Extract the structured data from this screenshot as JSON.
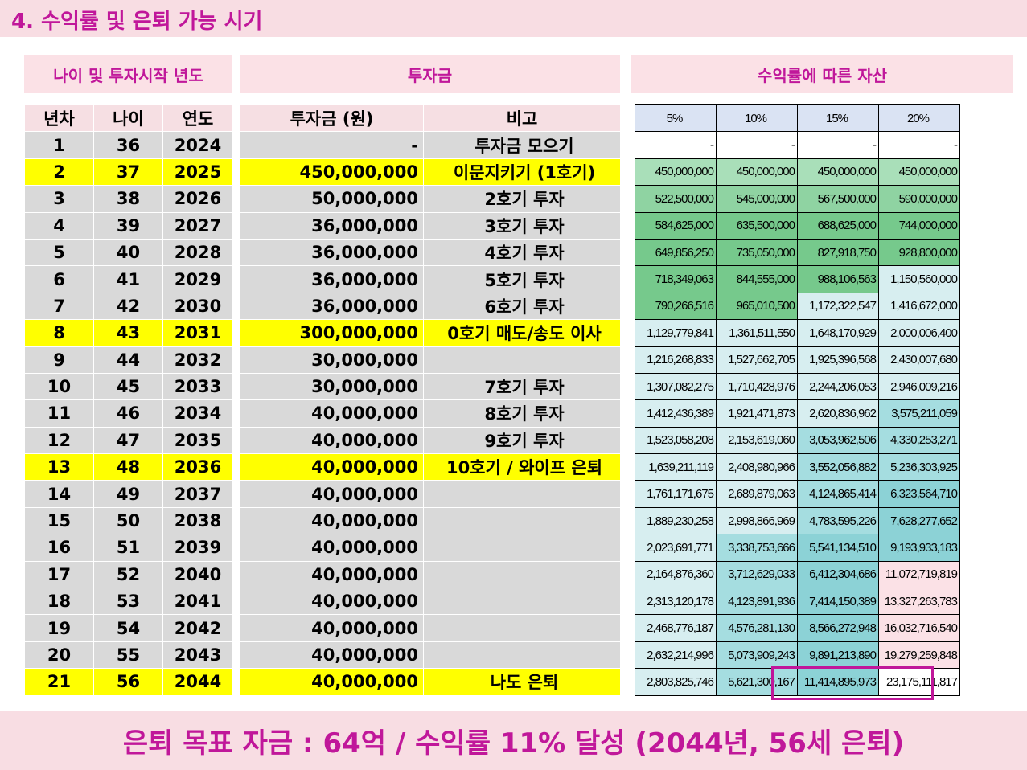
{
  "title": "4. 수익률 및 은퇴 가능 시기",
  "sections": {
    "age_year": "나이 및 투자시작 년도",
    "investment": "투자금",
    "assets": "수익률에 따른 자산"
  },
  "left_headers": [
    "년차",
    "나이",
    "연도",
    "투자금 (원)",
    "비고"
  ],
  "rate_headers": [
    "5%",
    "10%",
    "15%",
    "20%"
  ],
  "rows": [
    {
      "n": "1",
      "age": "36",
      "year": "2024",
      "amt": "-",
      "note": "투자금 모으기",
      "hl": false,
      "a": [
        "-",
        "-",
        "-",
        "-"
      ],
      "c": [
        "c0",
        "c0",
        "c0",
        "c0"
      ]
    },
    {
      "n": "2",
      "age": "37",
      "year": "2025",
      "amt": "450,000,000",
      "note": "이문지키기 (1호기)",
      "hl": true,
      "a": [
        "450,000,000",
        "450,000,000",
        "450,000,000",
        "450,000,000"
      ],
      "c": [
        "g1",
        "g1",
        "g1",
        "g1"
      ]
    },
    {
      "n": "3",
      "age": "38",
      "year": "2026",
      "amt": "50,000,000",
      "note": "2호기 투자",
      "hl": false,
      "a": [
        "522,500,000",
        "545,000,000",
        "567,500,000",
        "590,000,000"
      ],
      "c": [
        "g2",
        "g2",
        "g2",
        "g2"
      ]
    },
    {
      "n": "4",
      "age": "39",
      "year": "2027",
      "amt": "36,000,000",
      "note": "3호기 투자",
      "hl": false,
      "a": [
        "584,625,000",
        "635,500,000",
        "688,625,000",
        "744,000,000"
      ],
      "c": [
        "g3",
        "g3",
        "g3",
        "g3"
      ]
    },
    {
      "n": "5",
      "age": "40",
      "year": "2028",
      "amt": "36,000,000",
      "note": "4호기 투자",
      "hl": false,
      "a": [
        "649,856,250",
        "735,050,000",
        "827,918,750",
        "928,800,000"
      ],
      "c": [
        "g3",
        "g3",
        "g3",
        "g3"
      ]
    },
    {
      "n": "6",
      "age": "41",
      "year": "2029",
      "amt": "36,000,000",
      "note": "5호기 투자",
      "hl": false,
      "a": [
        "718,349,063",
        "844,555,000",
        "988,106,563",
        "1,150,560,000"
      ],
      "c": [
        "g3",
        "g3",
        "g3",
        "lb"
      ]
    },
    {
      "n": "7",
      "age": "42",
      "year": "2030",
      "amt": "36,000,000",
      "note": "6호기 투자",
      "hl": false,
      "a": [
        "790,266,516",
        "965,010,500",
        "1,172,322,547",
        "1,416,672,000"
      ],
      "c": [
        "g3",
        "g3",
        "lb",
        "lb"
      ]
    },
    {
      "n": "8",
      "age": "43",
      "year": "2031",
      "amt": "300,000,000",
      "note": "0호기 매도/송도 이사",
      "hl": true,
      "a": [
        "1,129,779,841",
        "1,361,511,550",
        "1,648,170,929",
        "2,000,006,400"
      ],
      "c": [
        "lb",
        "lb",
        "lb",
        "lb"
      ]
    },
    {
      "n": "9",
      "age": "44",
      "year": "2032",
      "amt": "30,000,000",
      "note": "",
      "hl": false,
      "a": [
        "1,216,268,833",
        "1,527,662,705",
        "1,925,396,568",
        "2,430,007,680"
      ],
      "c": [
        "lb",
        "lb",
        "lb",
        "lb"
      ]
    },
    {
      "n": "10",
      "age": "45",
      "year": "2033",
      "amt": "30,000,000",
      "note": "7호기 투자",
      "hl": false,
      "a": [
        "1,307,082,275",
        "1,710,428,976",
        "2,244,206,053",
        "2,946,009,216"
      ],
      "c": [
        "lb",
        "lb",
        "lb",
        "lb"
      ]
    },
    {
      "n": "11",
      "age": "46",
      "year": "2034",
      "amt": "40,000,000",
      "note": "8호기 투자",
      "hl": false,
      "a": [
        "1,412,436,389",
        "1,921,471,873",
        "2,620,836,962",
        "3,575,211,059"
      ],
      "c": [
        "lb",
        "lb",
        "lb",
        "tb"
      ]
    },
    {
      "n": "12",
      "age": "47",
      "year": "2035",
      "amt": "40,000,000",
      "note": "9호기 투자",
      "hl": false,
      "a": [
        "1,523,058,208",
        "2,153,619,060",
        "3,053,962,506",
        "4,330,253,271"
      ],
      "c": [
        "lb",
        "lb",
        "tb",
        "tb"
      ]
    },
    {
      "n": "13",
      "age": "48",
      "year": "2036",
      "amt": "40,000,000",
      "note": "10호기 / 와이프 은퇴",
      "hl": true,
      "a": [
        "1,639,211,119",
        "2,408,980,966",
        "3,552,056,882",
        "5,236,303,925"
      ],
      "c": [
        "lb",
        "lb",
        "tb",
        "tb"
      ]
    },
    {
      "n": "14",
      "age": "49",
      "year": "2037",
      "amt": "40,000,000",
      "note": "",
      "hl": false,
      "a": [
        "1,761,171,675",
        "2,689,879,063",
        "4,124,865,414",
        "6,323,564,710"
      ],
      "c": [
        "lb",
        "lb",
        "tb",
        "tb2"
      ]
    },
    {
      "n": "15",
      "age": "50",
      "year": "2038",
      "amt": "40,000,000",
      "note": "",
      "hl": false,
      "a": [
        "1,889,230,258",
        "2,998,866,969",
        "4,783,595,226",
        "7,628,277,652"
      ],
      "c": [
        "lb",
        "lb",
        "tb",
        "tb2"
      ]
    },
    {
      "n": "16",
      "age": "51",
      "year": "2039",
      "amt": "40,000,000",
      "note": "",
      "hl": false,
      "a": [
        "2,023,691,771",
        "3,338,753,666",
        "5,541,134,510",
        "9,193,933,183"
      ],
      "c": [
        "lb",
        "tb",
        "tb2",
        "tb2"
      ]
    },
    {
      "n": "17",
      "age": "52",
      "year": "2040",
      "amt": "40,000,000",
      "note": "",
      "hl": false,
      "a": [
        "2,164,876,360",
        "3,712,629,033",
        "6,412,304,686",
        "11,072,719,819"
      ],
      "c": [
        "lb",
        "tb",
        "tb2",
        "pk"
      ]
    },
    {
      "n": "18",
      "age": "53",
      "year": "2041",
      "amt": "40,000,000",
      "note": "",
      "hl": false,
      "a": [
        "2,313,120,178",
        "4,123,891,936",
        "7,414,150,389",
        "13,327,263,783"
      ],
      "c": [
        "lb",
        "tb",
        "tb2",
        "pk"
      ]
    },
    {
      "n": "19",
      "age": "54",
      "year": "2042",
      "amt": "40,000,000",
      "note": "",
      "hl": false,
      "a": [
        "2,468,776,187",
        "4,576,281,130",
        "8,566,272,948",
        "16,032,716,540"
      ],
      "c": [
        "lb",
        "tb",
        "tb2",
        "pk"
      ]
    },
    {
      "n": "20",
      "age": "55",
      "year": "2043",
      "amt": "40,000,000",
      "note": "",
      "hl": false,
      "a": [
        "2,632,214,996",
        "5,073,909,243",
        "9,891,213,890",
        "19,279,259,848"
      ],
      "c": [
        "lb",
        "tb",
        "tb2",
        "pk"
      ]
    },
    {
      "n": "21",
      "age": "56",
      "year": "2044",
      "amt": "40,000,000",
      "note": "나도 은퇴",
      "hl": true,
      "a": [
        "2,803,825,746",
        "5,621,300,167",
        "11,414,895,973",
        "23,175,111,817"
      ],
      "c": [
        "lb",
        "tb",
        "tb2",
        "c0"
      ]
    }
  ],
  "footer": "은퇴 목표 자금 : 64억 / 수익률 11% 달성 (2044년, 56세 은퇴)"
}
